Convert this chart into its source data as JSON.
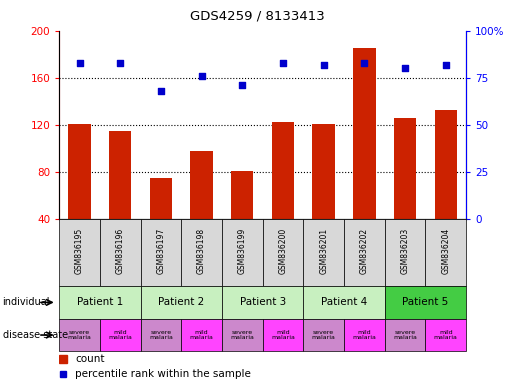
{
  "title": "GDS4259 / 8133413",
  "samples": [
    "GSM836195",
    "GSM836196",
    "GSM836197",
    "GSM836198",
    "GSM836199",
    "GSM836200",
    "GSM836201",
    "GSM836202",
    "GSM836203",
    "GSM836204"
  ],
  "counts": [
    121,
    115,
    75,
    98,
    81,
    122,
    121,
    185,
    126,
    133
  ],
  "percentiles": [
    83,
    83,
    68,
    76,
    71,
    83,
    82,
    83,
    80,
    82
  ],
  "bar_color": "#cc2200",
  "point_color": "#0000cc",
  "ylim_left": [
    40,
    200
  ],
  "ylim_right": [
    0,
    100
  ],
  "yticks_left": [
    40,
    80,
    120,
    160,
    200
  ],
  "yticks_right": [
    0,
    25,
    50,
    75,
    100
  ],
  "ytick_labels_left": [
    "40",
    "80",
    "120",
    "160",
    "200"
  ],
  "ytick_labels_right": [
    "0",
    "25",
    "50",
    "75",
    "100%"
  ],
  "grid_values": [
    80,
    120,
    160
  ],
  "patient_groups": [
    {
      "label": "Patient 1",
      "cols": [
        0,
        1
      ],
      "color": "#c8f0c0"
    },
    {
      "label": "Patient 2",
      "cols": [
        2,
        3
      ],
      "color": "#c8f0c0"
    },
    {
      "label": "Patient 3",
      "cols": [
        4,
        5
      ],
      "color": "#c8f0c0"
    },
    {
      "label": "Patient 4",
      "cols": [
        6,
        7
      ],
      "color": "#c8f0c0"
    },
    {
      "label": "Patient 5",
      "cols": [
        8,
        9
      ],
      "color": "#44cc44"
    }
  ],
  "severe_color": "#cc88cc",
  "mild_color": "#ff44ff",
  "sample_bg": "#d8d8d8",
  "label_individual": "individual",
  "label_disease": "disease state",
  "legend_count": "count",
  "legend_percentile": "percentile rank within the sample",
  "disease_states": [
    "severe\nmalaria",
    "mild\nmalaria",
    "severe\nmalaria",
    "mild\nmalaria",
    "severe\nmalaria",
    "mild\nmalaria",
    "severe\nmalaria",
    "mild\nmalaria",
    "severe\nmalaria",
    "mild\nmalaria"
  ]
}
